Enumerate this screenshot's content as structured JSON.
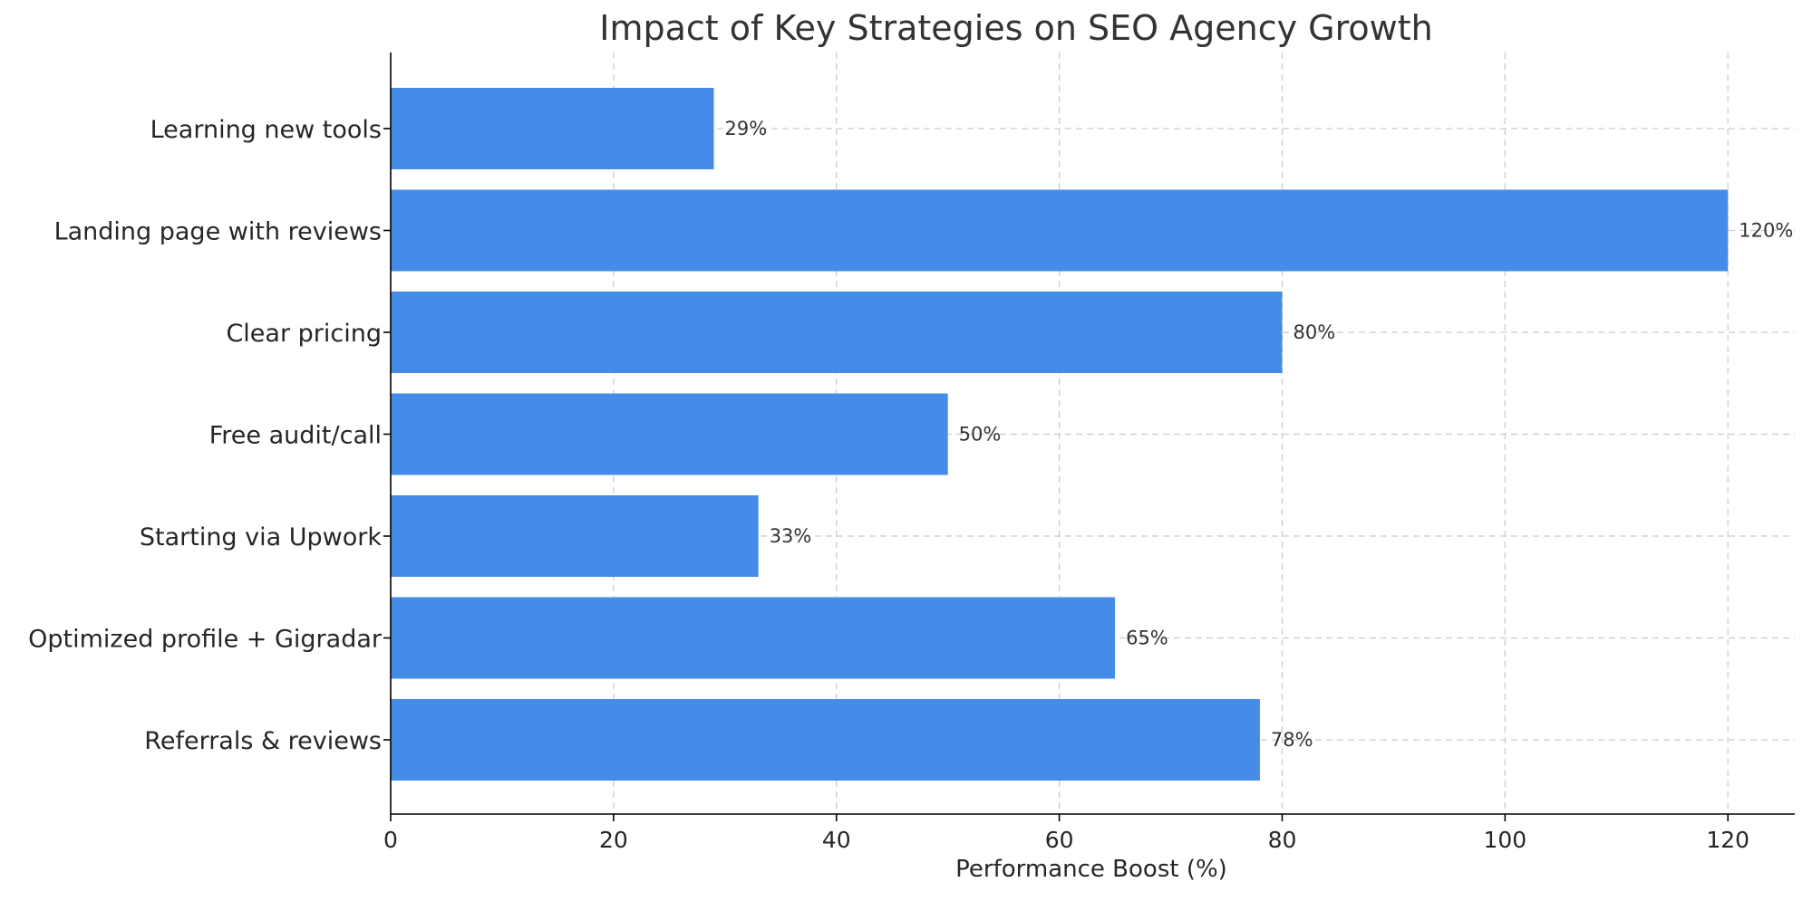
{
  "chart_data": {
    "type": "bar",
    "orientation": "horizontal",
    "title": "Impact of Key Strategies on SEO Agency Growth",
    "xlabel": "Performance Boost (%)",
    "ylabel": "",
    "categories": [
      "Learning new tools",
      "Landing page with reviews",
      "Clear pricing",
      "Free audit/call",
      "Starting via Upwork",
      "Optimized profile + Gigradar",
      "Referrals & reviews"
    ],
    "values": [
      29,
      120,
      80,
      50,
      33,
      65,
      78
    ],
    "data_labels": [
      "29%",
      "120%",
      "80%",
      "50%",
      "33%",
      "65%",
      "78%"
    ],
    "xlim": [
      0,
      126
    ],
    "xticks": [
      0,
      20,
      40,
      60,
      80,
      100,
      120
    ],
    "xtick_labels": [
      "0",
      "20",
      "40",
      "60",
      "80",
      "100",
      "120"
    ],
    "grid": true,
    "legend": "none",
    "bar_color": "#448ce8",
    "grid_color": "#c9c9d3"
  }
}
